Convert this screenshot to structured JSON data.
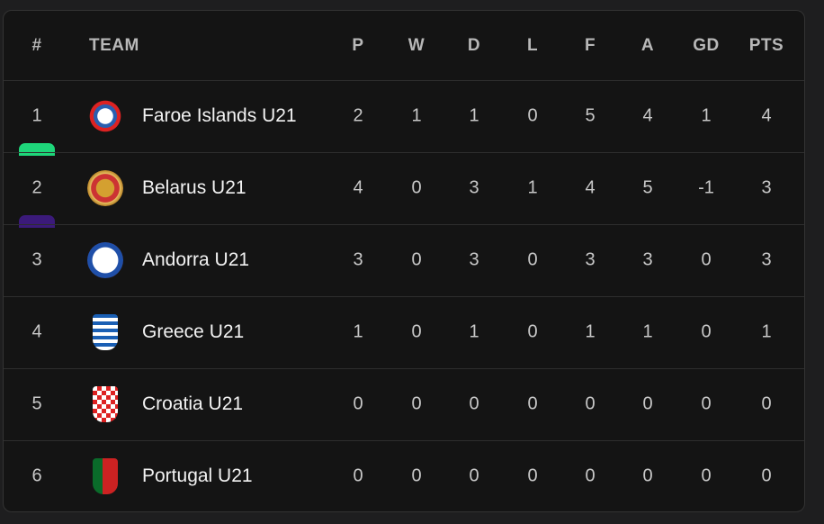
{
  "table": {
    "columns": [
      "#",
      "TEAM",
      "P",
      "W",
      "D",
      "L",
      "F",
      "A",
      "GD",
      "PTS"
    ],
    "rows": [
      [
        1,
        "Faroe Islands U21",
        2,
        1,
        1,
        0,
        5,
        4,
        1,
        4
      ],
      [
        2,
        "Belarus U21",
        4,
        0,
        3,
        1,
        4,
        5,
        -1,
        3
      ],
      [
        3,
        "Andorra U21",
        3,
        0,
        3,
        0,
        3,
        3,
        0,
        3
      ],
      [
        4,
        "Greece U21",
        1,
        0,
        1,
        0,
        1,
        1,
        0,
        1
      ],
      [
        5,
        "Croatia U21",
        0,
        0,
        0,
        0,
        0,
        0,
        0,
        0
      ],
      [
        6,
        "Portugal U21",
        0,
        0,
        0,
        0,
        0,
        0,
        0,
        0
      ]
    ]
  }
}
